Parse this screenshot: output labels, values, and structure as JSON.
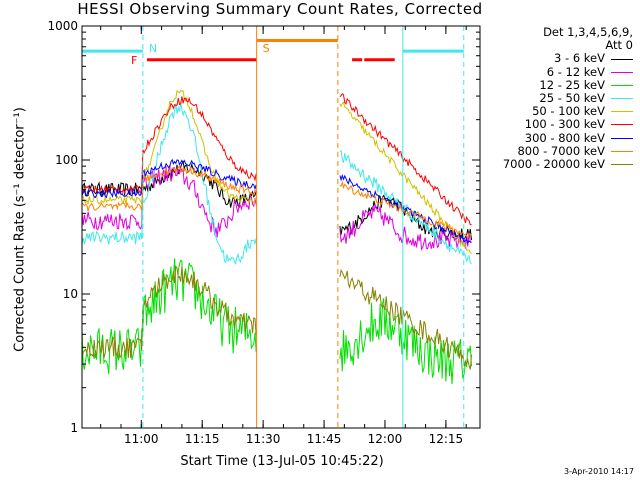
{
  "chart_data": {
    "type": "line",
    "title": "HESSI Observing Summary Count Rates, Corrected",
    "xlabel": "Start Time (13-Jul-05 10:45:22)",
    "ylabel": "Corrected Count Rate (s⁻¹ detector⁻¹)",
    "y_scale": "log",
    "ylim": [
      1,
      1000
    ],
    "y_ticks": [
      1,
      10,
      100,
      1000
    ],
    "y_tick_labels": [
      "1",
      "10",
      "100",
      "1000"
    ],
    "x_unit": "minutes since 10:45:22",
    "xlim": [
      0,
      98
    ],
    "x_ticks": [
      14.6,
      29.6,
      44.6,
      59.6,
      74.6,
      89.6
    ],
    "x_tick_labels": [
      "11:00",
      "11:15",
      "11:30",
      "11:45",
      "12:00",
      "12:15"
    ],
    "legend_title": [
      "Det 1,3,4,5,6,9,",
      "Att 0"
    ],
    "legend_position": "right",
    "grid": false,
    "series": [
      {
        "name": "3 - 6 keV",
        "color": "#000000"
      },
      {
        "name": "6 - 12 keV",
        "color": "#e000e0"
      },
      {
        "name": "12 - 25 keV",
        "color": "#00e000"
      },
      {
        "name": "25 - 50 keV",
        "color": "#40e8e8"
      },
      {
        "name": "50 - 100 keV",
        "color": "#d0c000"
      },
      {
        "name": "100 - 300 keV",
        "color": "#ff0000"
      },
      {
        "name": "300 - 800 keV",
        "color": "#0000ff"
      },
      {
        "name": "800 - 7000 keV",
        "color": "#ff8000"
      },
      {
        "name": "7000 - 20000 keV",
        "color": "#888000"
      }
    ],
    "flags": [
      {
        "label": "N",
        "color": "#40e8e8",
        "x": 15
      },
      {
        "label": "F",
        "color": "#ff0000",
        "x": 16
      },
      {
        "label": "S",
        "color": "#ff8000",
        "x": 43
      }
    ],
    "flag_bars": [
      {
        "color": "#40e8e8",
        "segments": [
          [
            0,
            15
          ],
          [
            79,
            94
          ]
        ],
        "level": 650
      },
      {
        "color": "#ff0000",
        "segments": [
          [
            16,
            43
          ],
          [
            66.5,
            69
          ],
          [
            69.5,
            77
          ]
        ],
        "level": 560
      },
      {
        "color": "#ff8000",
        "segments": [
          [
            43,
            63
          ]
        ],
        "level": 780
      }
    ],
    "vertical_lines": [
      {
        "x": 15,
        "color": "#40e8e8",
        "style": "dashed"
      },
      {
        "x": 43,
        "color": "#ff8000",
        "style": "solid"
      },
      {
        "x": 63,
        "color": "#ff8000",
        "style": "dashed"
      },
      {
        "x": 79,
        "color": "#40e8e8",
        "style": "solid"
      },
      {
        "x": 94,
        "color": "#40e8e8",
        "style": "dashed"
      }
    ]
  },
  "footer": {
    "timestamp": "3-Apr-2010 14:17"
  }
}
